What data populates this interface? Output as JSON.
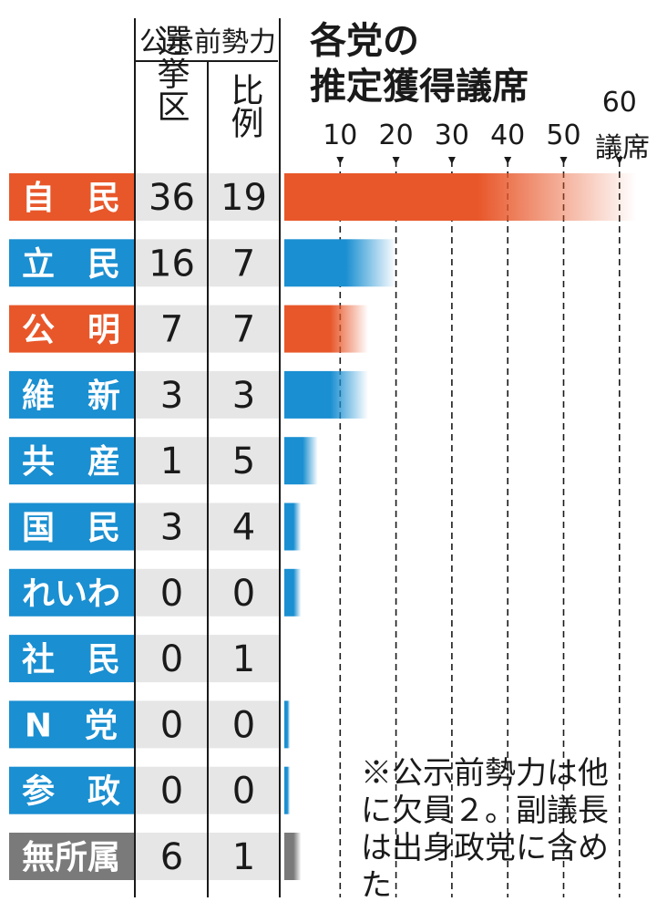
{
  "title_line1": "各党の",
  "title_line2": "推定獲得議席",
  "header": {
    "group_label": "公示前勢力",
    "col1_label": "選挙区",
    "col2_label": "比例"
  },
  "axis": {
    "unit_label": "議席"
  },
  "note": "※公示前勢力は他に欠員２。副議長は出身政党に含めた",
  "colors": {
    "ldp_komeito": "#e8572a",
    "opposition": "#1a8fd1",
    "independent": "#7a7a7a",
    "cell_bg": "#e6e6e6",
    "gridline": "#1a1a1a"
  },
  "chart_data": {
    "type": "bar",
    "orientation": "horizontal",
    "title": "各党の推定獲得議席",
    "x_unit": "議席",
    "xlim": [
      0,
      63
    ],
    "x_ticks": [
      10,
      20,
      30,
      40,
      50,
      60
    ],
    "x_tick_labels": [
      "10",
      "20",
      "30",
      "40",
      "50",
      "60"
    ],
    "categories": [
      "自　民",
      "立　民",
      "公　明",
      "維　新",
      "共　産",
      "国　民",
      "れいわ",
      "社　民",
      "N　党",
      "参　政",
      "無所属"
    ],
    "values": [
      63,
      20,
      15,
      15,
      6,
      3,
      3,
      0,
      1,
      1,
      3
    ],
    "label_colors": [
      "ldp_komeito",
      "opposition",
      "ldp_komeito",
      "opposition",
      "opposition",
      "opposition",
      "opposition",
      "opposition",
      "opposition",
      "opposition",
      "independent"
    ],
    "table": {
      "columns": [
        "選挙区",
        "比例"
      ],
      "rows": [
        [
          "36",
          "19"
        ],
        [
          "16",
          "7"
        ],
        [
          "7",
          "7"
        ],
        [
          "3",
          "3"
        ],
        [
          "1",
          "5"
        ],
        [
          "3",
          "4"
        ],
        [
          "0",
          "0"
        ],
        [
          "0",
          "1"
        ],
        [
          "0",
          "0"
        ],
        [
          "0",
          "0"
        ],
        [
          "6",
          "1"
        ]
      ]
    }
  }
}
